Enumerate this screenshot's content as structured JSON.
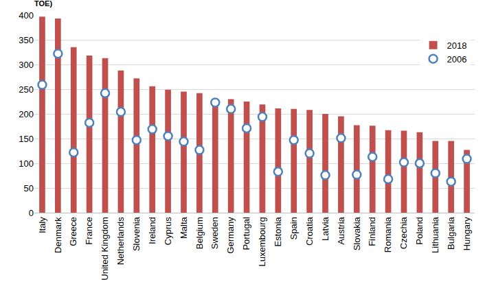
{
  "chart_data": {
    "type": "bar",
    "title": "TOE)",
    "categories": [
      "Italy",
      "Denmark",
      "Greece",
      "France",
      "United Kingdom",
      "Netherlands",
      "Slovenia",
      "Ireland",
      "Cyprus",
      "Malta",
      "Belgium",
      "Sweden",
      "Germany",
      "Portugal",
      "Luxembourg",
      "Estonia",
      "Spain",
      "Croatia",
      "Latvia",
      "Austria",
      "Slovakia",
      "Finland",
      "Romania",
      "Czechia",
      "Poland",
      "Lithuania",
      "Bulgaria",
      "Hungary"
    ],
    "series": [
      {
        "name": "2018",
        "type": "bar",
        "color": "#c0504d",
        "values": [
          397,
          393,
          335,
          318,
          313,
          288,
          272,
          256,
          249,
          245,
          242,
          225,
          230,
          225,
          219,
          211,
          210,
          208,
          200,
          195,
          177,
          176,
          167,
          166,
          163,
          145,
          145,
          127
        ]
      },
      {
        "name": "2006",
        "type": "scatter",
        "color": "#4f81bd",
        "marker": "circle",
        "values": [
          259,
          322,
          122,
          182,
          242,
          204,
          147,
          169,
          155,
          144,
          127,
          223,
          210,
          171,
          194,
          83,
          147,
          120,
          76,
          151,
          77,
          113,
          68,
          102,
          100,
          80,
          63,
          109
        ]
      }
    ],
    "ylim": [
      0,
      400
    ],
    "yticks": [
      0,
      50,
      100,
      150,
      200,
      250,
      300,
      350,
      400
    ],
    "grid": true,
    "legend": "top-right"
  }
}
